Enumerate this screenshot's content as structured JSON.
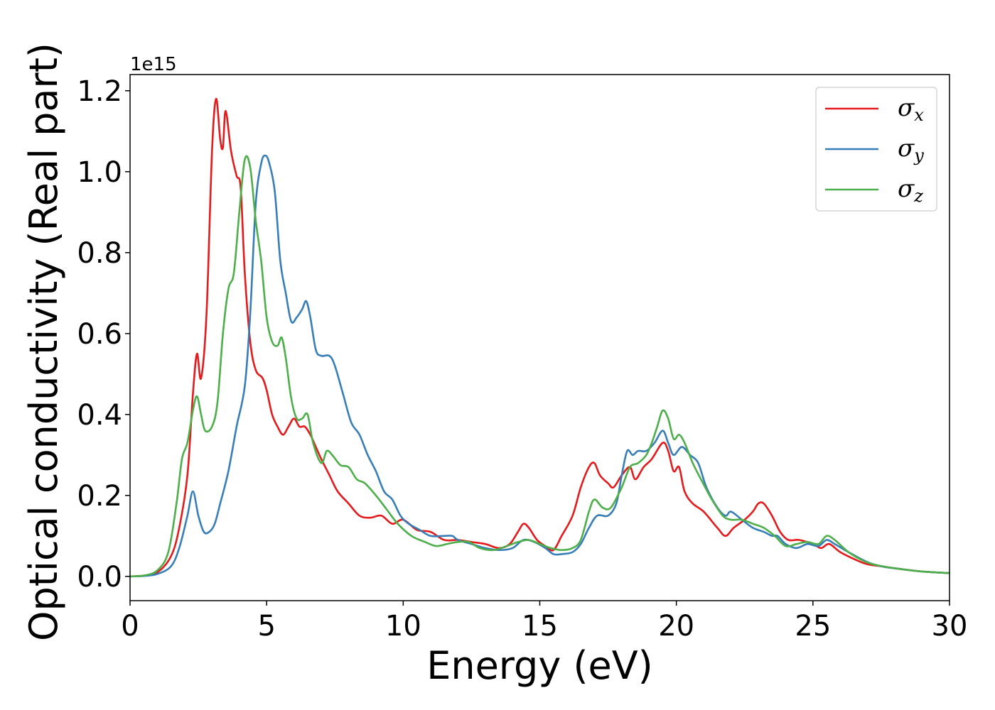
{
  "chart_data": {
    "type": "line",
    "xlabel": "Energy (eV)",
    "ylabel": "Optical conductivity (Real part)",
    "y_offset_text": "1e15",
    "xlim": [
      0,
      30
    ],
    "ylim": [
      -0.06,
      1.24
    ],
    "xticks": [
      0,
      5,
      10,
      15,
      20,
      25,
      30
    ],
    "yticks": [
      0.0,
      0.2,
      0.4,
      0.6,
      0.8,
      1.0,
      1.2
    ],
    "xtick_labels": [
      "0",
      "5",
      "10",
      "15",
      "20",
      "25",
      "30"
    ],
    "ytick_labels": [
      "0.0",
      "0.2",
      "0.4",
      "0.6",
      "0.8",
      "1.0",
      "1.2"
    ],
    "grid": false,
    "legend_position": "top-right",
    "series": [
      {
        "name": "σx",
        "symbol": "σ",
        "subscript": "x",
        "color": "#e41a1c",
        "points": [
          [
            0,
            0
          ],
          [
            0.5,
            0.002
          ],
          [
            1.0,
            0.01
          ],
          [
            1.5,
            0.05
          ],
          [
            1.8,
            0.12
          ],
          [
            2.1,
            0.25
          ],
          [
            2.3,
            0.45
          ],
          [
            2.45,
            0.55
          ],
          [
            2.6,
            0.49
          ],
          [
            2.8,
            0.65
          ],
          [
            3.0,
            1.05
          ],
          [
            3.15,
            1.18
          ],
          [
            3.3,
            1.08
          ],
          [
            3.4,
            1.06
          ],
          [
            3.5,
            1.15
          ],
          [
            3.7,
            1.05
          ],
          [
            3.9,
            0.99
          ],
          [
            4.05,
            0.96
          ],
          [
            4.2,
            0.75
          ],
          [
            4.4,
            0.58
          ],
          [
            4.6,
            0.51
          ],
          [
            4.85,
            0.49
          ],
          [
            5.0,
            0.46
          ],
          [
            5.2,
            0.4
          ],
          [
            5.4,
            0.37
          ],
          [
            5.6,
            0.35
          ],
          [
            5.8,
            0.37
          ],
          [
            6.0,
            0.39
          ],
          [
            6.2,
            0.37
          ],
          [
            6.4,
            0.37
          ],
          [
            6.6,
            0.35
          ],
          [
            6.8,
            0.32
          ],
          [
            7.0,
            0.29
          ],
          [
            7.3,
            0.25
          ],
          [
            7.6,
            0.21
          ],
          [
            8.0,
            0.18
          ],
          [
            8.4,
            0.15
          ],
          [
            8.8,
            0.145
          ],
          [
            9.2,
            0.15
          ],
          [
            9.6,
            0.13
          ],
          [
            10.0,
            0.14
          ],
          [
            10.5,
            0.115
          ],
          [
            11.0,
            0.11
          ],
          [
            11.5,
            0.09
          ],
          [
            12.0,
            0.09
          ],
          [
            12.5,
            0.085
          ],
          [
            13.0,
            0.08
          ],
          [
            13.5,
            0.07
          ],
          [
            13.9,
            0.08
          ],
          [
            14.2,
            0.11
          ],
          [
            14.4,
            0.13
          ],
          [
            14.6,
            0.12
          ],
          [
            14.9,
            0.09
          ],
          [
            15.2,
            0.075
          ],
          [
            15.5,
            0.065
          ],
          [
            15.8,
            0.1
          ],
          [
            16.2,
            0.15
          ],
          [
            16.5,
            0.22
          ],
          [
            16.8,
            0.27
          ],
          [
            17.0,
            0.28
          ],
          [
            17.2,
            0.25
          ],
          [
            17.5,
            0.23
          ],
          [
            17.7,
            0.22
          ],
          [
            18.0,
            0.25
          ],
          [
            18.3,
            0.27
          ],
          [
            18.5,
            0.24
          ],
          [
            18.8,
            0.27
          ],
          [
            19.1,
            0.29
          ],
          [
            19.5,
            0.33
          ],
          [
            19.7,
            0.31
          ],
          [
            19.9,
            0.26
          ],
          [
            20.1,
            0.27
          ],
          [
            20.3,
            0.21
          ],
          [
            20.6,
            0.18
          ],
          [
            21.0,
            0.16
          ],
          [
            21.5,
            0.12
          ],
          [
            21.8,
            0.1
          ],
          [
            22.1,
            0.12
          ],
          [
            22.5,
            0.14
          ],
          [
            22.8,
            0.16
          ],
          [
            23.0,
            0.18
          ],
          [
            23.2,
            0.18
          ],
          [
            23.5,
            0.15
          ],
          [
            23.8,
            0.11
          ],
          [
            24.1,
            0.09
          ],
          [
            24.5,
            0.09
          ],
          [
            25.0,
            0.08
          ],
          [
            25.3,
            0.07
          ],
          [
            25.6,
            0.08
          ],
          [
            26.0,
            0.06
          ],
          [
            26.6,
            0.04
          ],
          [
            27.0,
            0.03
          ],
          [
            27.5,
            0.025
          ],
          [
            28.0,
            0.02
          ],
          [
            29.0,
            0.012
          ],
          [
            30.0,
            0.008
          ]
        ]
      },
      {
        "name": "σy",
        "symbol": "σ",
        "subscript": "y",
        "color": "#377eb8",
        "points": [
          [
            0,
            0
          ],
          [
            0.5,
            0.001
          ],
          [
            1.0,
            0.006
          ],
          [
            1.5,
            0.025
          ],
          [
            1.8,
            0.07
          ],
          [
            2.1,
            0.15
          ],
          [
            2.3,
            0.21
          ],
          [
            2.5,
            0.15
          ],
          [
            2.7,
            0.11
          ],
          [
            2.9,
            0.11
          ],
          [
            3.1,
            0.13
          ],
          [
            3.3,
            0.18
          ],
          [
            3.6,
            0.26
          ],
          [
            3.9,
            0.37
          ],
          [
            4.2,
            0.47
          ],
          [
            4.4,
            0.65
          ],
          [
            4.6,
            0.92
          ],
          [
            4.8,
            1.02
          ],
          [
            4.95,
            1.04
          ],
          [
            5.1,
            1.02
          ],
          [
            5.3,
            0.95
          ],
          [
            5.5,
            0.78
          ],
          [
            5.7,
            0.7
          ],
          [
            5.9,
            0.63
          ],
          [
            6.1,
            0.64
          ],
          [
            6.3,
            0.66
          ],
          [
            6.45,
            0.68
          ],
          [
            6.6,
            0.64
          ],
          [
            6.8,
            0.56
          ],
          [
            7.0,
            0.545
          ],
          [
            7.3,
            0.545
          ],
          [
            7.5,
            0.52
          ],
          [
            7.8,
            0.45
          ],
          [
            8.1,
            0.38
          ],
          [
            8.4,
            0.35
          ],
          [
            8.7,
            0.3
          ],
          [
            9.0,
            0.26
          ],
          [
            9.3,
            0.21
          ],
          [
            9.6,
            0.19
          ],
          [
            9.9,
            0.15
          ],
          [
            10.2,
            0.13
          ],
          [
            10.6,
            0.115
          ],
          [
            11.0,
            0.1
          ],
          [
            11.5,
            0.1
          ],
          [
            11.8,
            0.1
          ],
          [
            12.0,
            0.09
          ],
          [
            12.5,
            0.08
          ],
          [
            13.0,
            0.07
          ],
          [
            13.5,
            0.065
          ],
          [
            14.0,
            0.07
          ],
          [
            14.4,
            0.09
          ],
          [
            14.8,
            0.085
          ],
          [
            15.2,
            0.07
          ],
          [
            15.5,
            0.055
          ],
          [
            15.8,
            0.055
          ],
          [
            16.2,
            0.06
          ],
          [
            16.5,
            0.08
          ],
          [
            16.8,
            0.12
          ],
          [
            17.1,
            0.15
          ],
          [
            17.5,
            0.15
          ],
          [
            17.8,
            0.18
          ],
          [
            18.0,
            0.25
          ],
          [
            18.2,
            0.31
          ],
          [
            18.4,
            0.3
          ],
          [
            18.6,
            0.31
          ],
          [
            18.9,
            0.31
          ],
          [
            19.2,
            0.33
          ],
          [
            19.5,
            0.36
          ],
          [
            19.7,
            0.33
          ],
          [
            19.9,
            0.3
          ],
          [
            20.2,
            0.32
          ],
          [
            20.5,
            0.3
          ],
          [
            20.8,
            0.28
          ],
          [
            21.1,
            0.22
          ],
          [
            21.5,
            0.17
          ],
          [
            21.8,
            0.15
          ],
          [
            22.0,
            0.16
          ],
          [
            22.4,
            0.14
          ],
          [
            22.8,
            0.12
          ],
          [
            23.2,
            0.11
          ],
          [
            23.5,
            0.1
          ],
          [
            23.7,
            0.1
          ],
          [
            24.0,
            0.08
          ],
          [
            24.4,
            0.07
          ],
          [
            24.8,
            0.08
          ],
          [
            25.2,
            0.075
          ],
          [
            25.5,
            0.09
          ],
          [
            25.8,
            0.08
          ],
          [
            26.3,
            0.06
          ],
          [
            27.0,
            0.035
          ],
          [
            27.5,
            0.025
          ],
          [
            28.0,
            0.02
          ],
          [
            29.0,
            0.012
          ],
          [
            30.0,
            0.008
          ]
        ]
      },
      {
        "name": "σz",
        "symbol": "σ",
        "subscript": "z",
        "color": "#4daf4a",
        "points": [
          [
            0,
            0
          ],
          [
            0.5,
            0.002
          ],
          [
            1.0,
            0.015
          ],
          [
            1.4,
            0.06
          ],
          [
            1.7,
            0.18
          ],
          [
            1.9,
            0.29
          ],
          [
            2.1,
            0.33
          ],
          [
            2.3,
            0.41
          ],
          [
            2.45,
            0.445
          ],
          [
            2.6,
            0.4
          ],
          [
            2.75,
            0.36
          ],
          [
            3.0,
            0.37
          ],
          [
            3.2,
            0.43
          ],
          [
            3.4,
            0.6
          ],
          [
            3.6,
            0.71
          ],
          [
            3.8,
            0.75
          ],
          [
            4.0,
            0.9
          ],
          [
            4.2,
            1.03
          ],
          [
            4.4,
            1.01
          ],
          [
            4.6,
            0.88
          ],
          [
            4.8,
            0.78
          ],
          [
            5.0,
            0.64
          ],
          [
            5.2,
            0.58
          ],
          [
            5.4,
            0.57
          ],
          [
            5.55,
            0.59
          ],
          [
            5.7,
            0.54
          ],
          [
            5.9,
            0.44
          ],
          [
            6.1,
            0.39
          ],
          [
            6.3,
            0.39
          ],
          [
            6.5,
            0.4
          ],
          [
            6.7,
            0.33
          ],
          [
            7.0,
            0.28
          ],
          [
            7.2,
            0.31
          ],
          [
            7.4,
            0.3
          ],
          [
            7.7,
            0.275
          ],
          [
            8.0,
            0.27
          ],
          [
            8.3,
            0.24
          ],
          [
            8.6,
            0.23
          ],
          [
            9.0,
            0.2
          ],
          [
            9.4,
            0.165
          ],
          [
            9.8,
            0.13
          ],
          [
            10.3,
            0.1
          ],
          [
            10.8,
            0.085
          ],
          [
            11.2,
            0.075
          ],
          [
            11.6,
            0.08
          ],
          [
            12.0,
            0.085
          ],
          [
            12.4,
            0.085
          ],
          [
            12.8,
            0.07
          ],
          [
            13.3,
            0.065
          ],
          [
            13.8,
            0.075
          ],
          [
            14.2,
            0.085
          ],
          [
            14.6,
            0.09
          ],
          [
            15.0,
            0.08
          ],
          [
            15.4,
            0.07
          ],
          [
            15.8,
            0.065
          ],
          [
            16.2,
            0.07
          ],
          [
            16.5,
            0.09
          ],
          [
            16.8,
            0.16
          ],
          [
            17.0,
            0.19
          ],
          [
            17.3,
            0.17
          ],
          [
            17.6,
            0.17
          ],
          [
            18.0,
            0.22
          ],
          [
            18.3,
            0.27
          ],
          [
            18.6,
            0.28
          ],
          [
            18.9,
            0.3
          ],
          [
            19.1,
            0.33
          ],
          [
            19.3,
            0.37
          ],
          [
            19.5,
            0.41
          ],
          [
            19.7,
            0.39
          ],
          [
            19.9,
            0.34
          ],
          [
            20.1,
            0.35
          ],
          [
            20.3,
            0.33
          ],
          [
            20.6,
            0.28
          ],
          [
            20.9,
            0.24
          ],
          [
            21.3,
            0.19
          ],
          [
            21.7,
            0.15
          ],
          [
            22.0,
            0.14
          ],
          [
            22.4,
            0.14
          ],
          [
            22.8,
            0.13
          ],
          [
            23.2,
            0.12
          ],
          [
            23.6,
            0.1
          ],
          [
            24.0,
            0.075
          ],
          [
            24.4,
            0.08
          ],
          [
            24.8,
            0.085
          ],
          [
            25.2,
            0.08
          ],
          [
            25.5,
            0.1
          ],
          [
            25.8,
            0.09
          ],
          [
            26.3,
            0.06
          ],
          [
            26.8,
            0.04
          ],
          [
            27.2,
            0.03
          ],
          [
            28.0,
            0.02
          ],
          [
            29.0,
            0.012
          ],
          [
            30.0,
            0.008
          ]
        ]
      }
    ]
  }
}
